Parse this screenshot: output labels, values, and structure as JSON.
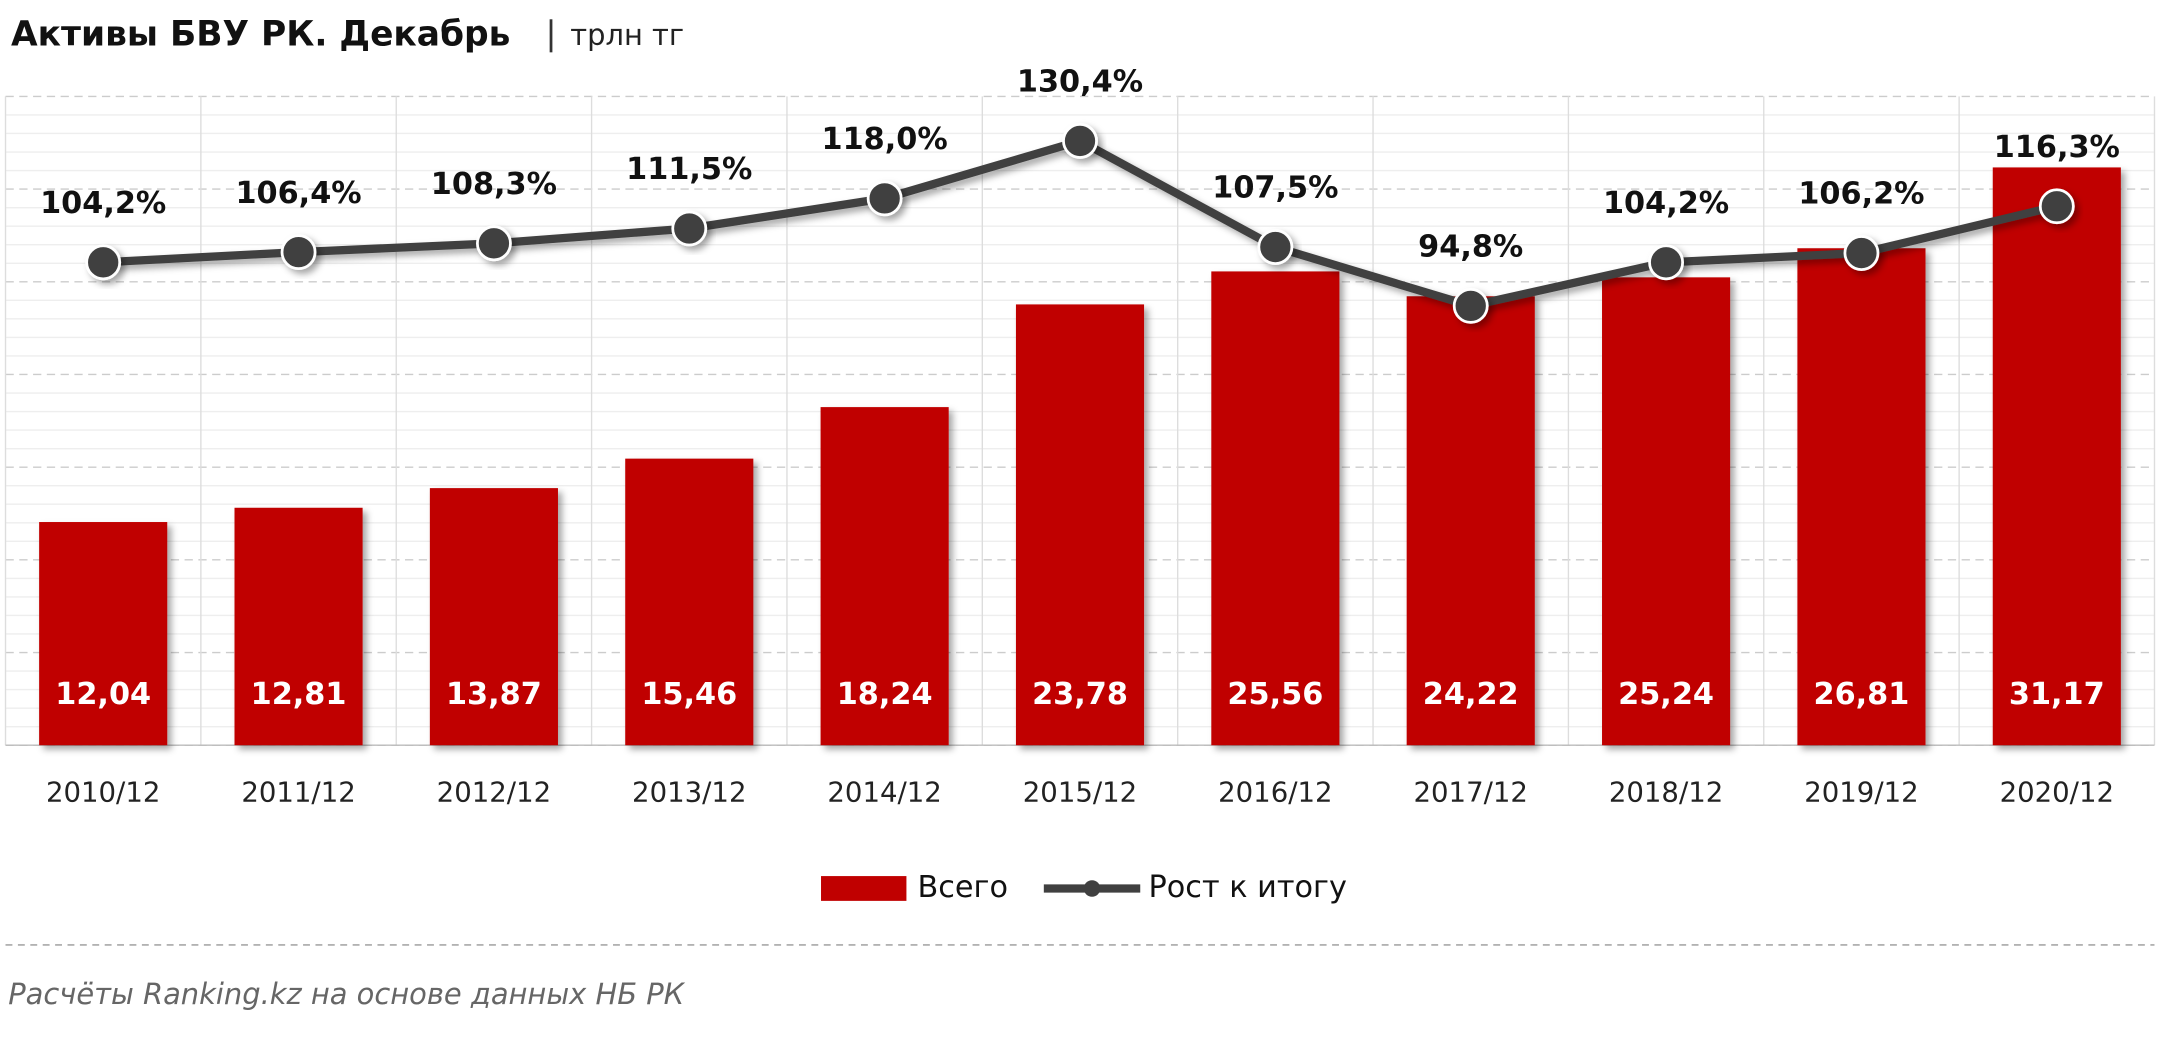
{
  "chart_data": {
    "type": "bar",
    "title": "Активы БВУ РК. Декабрь",
    "subtitle": "трлн тг",
    "categories": [
      "2010/12",
      "2011/12",
      "2012/12",
      "2013/12",
      "2014/12",
      "2015/12",
      "2016/12",
      "2017/12",
      "2018/12",
      "2019/12",
      "2020/12"
    ],
    "ylim": [
      0,
      35
    ],
    "y2lim": [
      0,
      140
    ],
    "series": [
      {
        "name": "Всего",
        "type": "bar",
        "color": "#c00000",
        "values": [
          12.04,
          12.81,
          13.87,
          15.46,
          18.24,
          23.78,
          25.56,
          24.22,
          25.24,
          26.81,
          31.17
        ],
        "value_labels": [
          "12,04",
          "12,81",
          "13,87",
          "15,46",
          "18,24",
          "23,78",
          "25,56",
          "24,22",
          "25,24",
          "26,81",
          "31,17"
        ]
      },
      {
        "name": "Рост к итогу",
        "type": "line",
        "axis": "y2",
        "color": "#404040",
        "values": [
          104.2,
          106.4,
          108.3,
          111.5,
          118.0,
          130.4,
          107.5,
          94.8,
          104.2,
          106.2,
          116.3
        ],
        "value_labels": [
          "104,2%",
          "106,4%",
          "108,3%",
          "111,5%",
          "118,0%",
          "130,4%",
          "107,5%",
          "94,8%",
          "104,2%",
          "106,2%",
          "116,3%"
        ]
      }
    ],
    "legend": "bottom",
    "source": "Расчёты Ranking.kz на основе данных  НБ РК"
  }
}
